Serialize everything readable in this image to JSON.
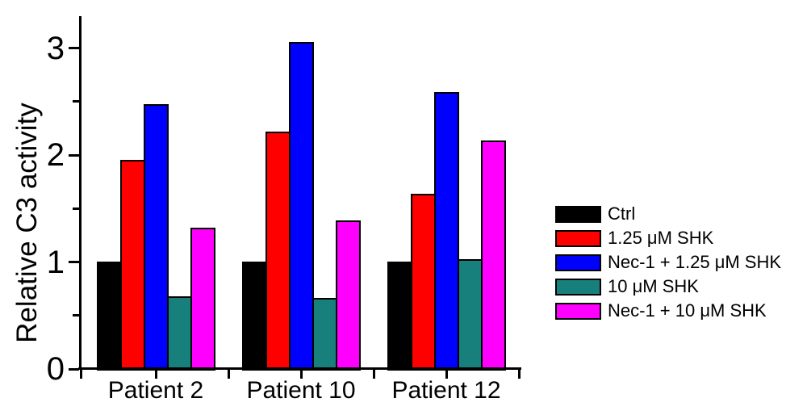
{
  "chart_data": {
    "type": "bar",
    "title": "",
    "xlabel": "",
    "ylabel": "Relative C3 activity",
    "categories": [
      "Patient 2",
      "Patient 10",
      "Patient 12"
    ],
    "series": [
      {
        "name": "Ctrl",
        "color": "#000000",
        "values": [
          1.0,
          1.0,
          1.0
        ]
      },
      {
        "name": "1.25 μM SHK",
        "color": "#ff0000",
        "values": [
          1.95,
          2.21,
          1.63
        ]
      },
      {
        "name": "Nec-1 + 1.25 μM SHK",
        "color": "#0000ff",
        "values": [
          2.47,
          3.05,
          2.58
        ]
      },
      {
        "name": "10 μM SHK",
        "color": "#17807d",
        "values": [
          0.67,
          0.66,
          1.02
        ]
      },
      {
        "name": "Nec-1 + 10 μM SHK",
        "color": "#ff00ff",
        "values": [
          1.31,
          1.38,
          2.13
        ]
      }
    ],
    "ylim": [
      0,
      3.3
    ],
    "yticks": [
      "0",
      "1",
      "2",
      "3"
    ],
    "yticks_minor": [
      0.5,
      1.5,
      2.5
    ],
    "grid": false,
    "legend_position": "right",
    "bar_outline_color": "#000000",
    "background_color": "#ffffff"
  }
}
